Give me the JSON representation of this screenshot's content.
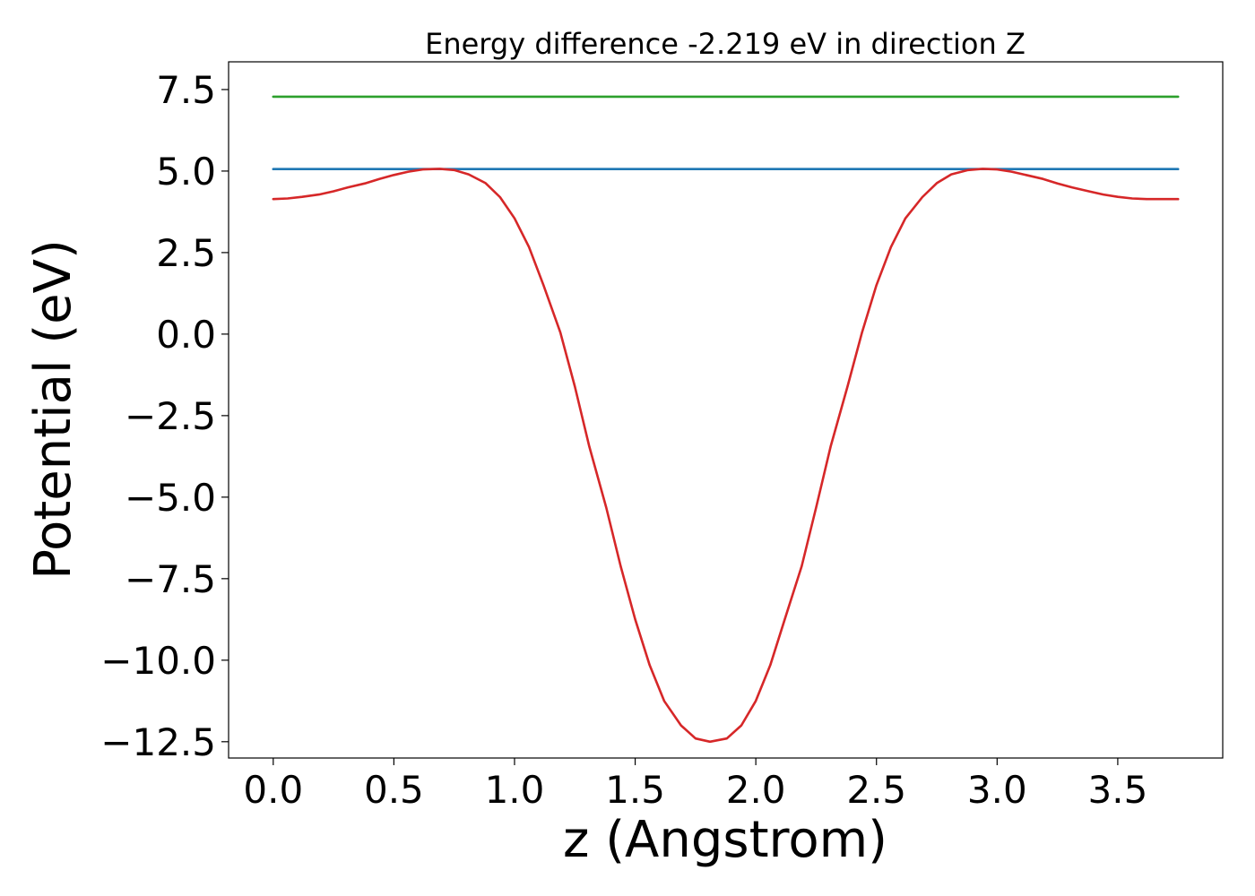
{
  "chart_data": {
    "type": "line",
    "title": "Energy difference -2.219 eV in direction Z",
    "xlabel": "z (Angstrom)",
    "ylabel": "Potential (eV)",
    "xlim": [
      -0.185,
      3.935
    ],
    "ylim": [
      -13.0,
      8.35
    ],
    "x_ticks": [
      0.0,
      0.5,
      1.0,
      1.5,
      2.0,
      2.5,
      3.0,
      3.5
    ],
    "x_tick_labels": [
      "0.0",
      "0.5",
      "1.0",
      "1.5",
      "2.0",
      "2.5",
      "3.0",
      "3.5"
    ],
    "y_ticks": [
      7.5,
      5.0,
      2.5,
      0.0,
      -2.5,
      -5.0,
      -7.5,
      -10.0,
      -12.5
    ],
    "y_tick_labels": [
      "7.5",
      "5.0",
      "2.5",
      "0.0",
      "−2.5",
      "−5.0",
      "−7.5",
      "−10.0",
      "−12.5"
    ],
    "grid": false,
    "series": [
      {
        "color": "#2ca02c",
        "x": [
          0.0,
          3.75
        ],
        "y": [
          7.28,
          7.28
        ]
      },
      {
        "color": "#1f77b4",
        "x": [
          0.0,
          3.75
        ],
        "y": [
          5.06,
          5.06
        ]
      },
      {
        "color": "#d62728",
        "x": [
          0.0,
          0.06,
          0.12,
          0.19,
          0.25,
          0.31,
          0.38,
          0.44,
          0.5,
          0.56,
          0.62,
          0.69,
          0.75,
          0.81,
          0.88,
          0.94,
          1.0,
          1.06,
          1.12,
          1.19,
          1.25,
          1.31,
          1.38,
          1.44,
          1.5,
          1.56,
          1.62,
          1.69,
          1.75,
          1.81,
          1.88,
          1.94,
          2.0,
          2.06,
          2.12,
          2.19,
          2.25,
          2.31,
          2.38,
          2.44,
          2.5,
          2.56,
          2.62,
          2.69,
          2.75,
          2.81,
          2.88,
          2.94,
          3.0,
          3.06,
          3.12,
          3.19,
          3.25,
          3.31,
          3.38,
          3.44,
          3.5,
          3.56,
          3.62,
          3.69,
          3.75
        ],
        "y": [
          4.14,
          4.16,
          4.21,
          4.28,
          4.38,
          4.5,
          4.62,
          4.76,
          4.88,
          4.98,
          5.05,
          5.07,
          5.03,
          4.9,
          4.63,
          4.2,
          3.55,
          2.67,
          1.5,
          0.05,
          -1.61,
          -3.45,
          -5.32,
          -7.12,
          -8.75,
          -10.15,
          -11.25,
          -12.0,
          -12.4,
          -12.5,
          -12.4,
          -12.0,
          -11.25,
          -10.15,
          -8.75,
          -7.12,
          -5.32,
          -3.45,
          -1.61,
          0.05,
          1.5,
          2.67,
          3.55,
          4.2,
          4.63,
          4.9,
          5.03,
          5.07,
          5.05,
          4.98,
          4.88,
          4.76,
          4.62,
          4.5,
          4.38,
          4.28,
          4.21,
          4.16,
          4.14,
          4.14,
          4.14
        ]
      }
    ]
  }
}
